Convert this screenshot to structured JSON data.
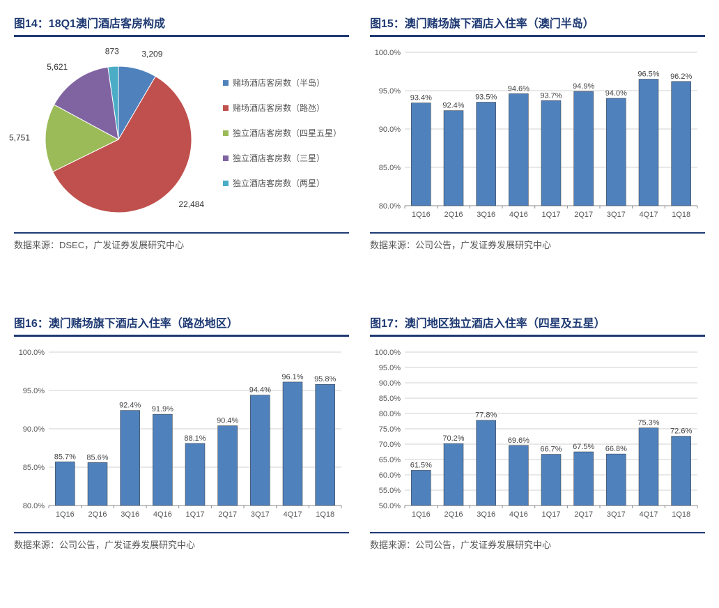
{
  "panels": {
    "pie": {
      "title": "图14：18Q1澳门酒店客房构成",
      "source": "数据来源：DSEC，广发证券发展研究中心",
      "slices": [
        {
          "label": "赌场酒店客房数（半岛）",
          "value": 3209,
          "color": "#4f81bd",
          "display": "3,209"
        },
        {
          "label": "赌场酒店客房数（路氹）",
          "value": 22484,
          "color": "#c0504d",
          "display": "22,484"
        },
        {
          "label": "独立酒店客房数（四星五星）",
          "value": 5751,
          "color": "#9bbb59",
          "display": "5,751"
        },
        {
          "label": "独立酒店客房数（三星）",
          "value": 5621,
          "color": "#8064a2",
          "display": "5,621"
        },
        {
          "label": "独立酒店客房数（两星）",
          "value": 873,
          "color": "#4bacc6",
          "display": "873"
        }
      ]
    },
    "bar1": {
      "title": "图15：澳门赌场旗下酒店入住率（澳门半岛）",
      "source": "数据来源：公司公告，广发证券发展研究中心",
      "ylim": [
        80,
        100
      ],
      "ytick_step": 5,
      "categories": [
        "1Q16",
        "2Q16",
        "3Q16",
        "4Q16",
        "1Q17",
        "2Q17",
        "3Q17",
        "4Q17",
        "1Q18"
      ],
      "values": [
        93.4,
        92.4,
        93.5,
        94.6,
        93.7,
        94.9,
        94.0,
        96.5,
        96.2
      ],
      "bar_color": "#4f81bd",
      "border_color": "#333333"
    },
    "bar2": {
      "title": "图16：澳门赌场旗下酒店入住率（路氹地区）",
      "source": "数据来源：公司公告，广发证券发展研究中心",
      "ylim": [
        80,
        100
      ],
      "ytick_step": 5,
      "categories": [
        "1Q16",
        "2Q16",
        "3Q16",
        "4Q16",
        "1Q17",
        "2Q17",
        "3Q17",
        "4Q17",
        "1Q18"
      ],
      "values": [
        85.7,
        85.6,
        92.4,
        91.9,
        88.1,
        90.4,
        94.4,
        96.1,
        95.8
      ],
      "bar_color": "#4f81bd",
      "border_color": "#333333"
    },
    "bar3": {
      "title": "图17：澳门地区独立酒店入住率（四星及五星）",
      "source": "数据来源：公司公告，广发证券发展研究中心",
      "ylim": [
        50,
        100
      ],
      "ytick_step": 5,
      "categories": [
        "1Q16",
        "2Q16",
        "3Q16",
        "4Q16",
        "1Q17",
        "2Q17",
        "3Q17",
        "4Q17",
        "1Q18"
      ],
      "values": [
        61.5,
        70.2,
        77.8,
        69.6,
        66.7,
        67.5,
        66.8,
        75.3,
        72.6
      ],
      "bar_color": "#4f81bd",
      "border_color": "#333333"
    }
  },
  "chart_style": {
    "grid_color": "#d0d0d0",
    "axis_color": "#888888",
    "label_fontsize": 11,
    "legend_marker": 8
  }
}
